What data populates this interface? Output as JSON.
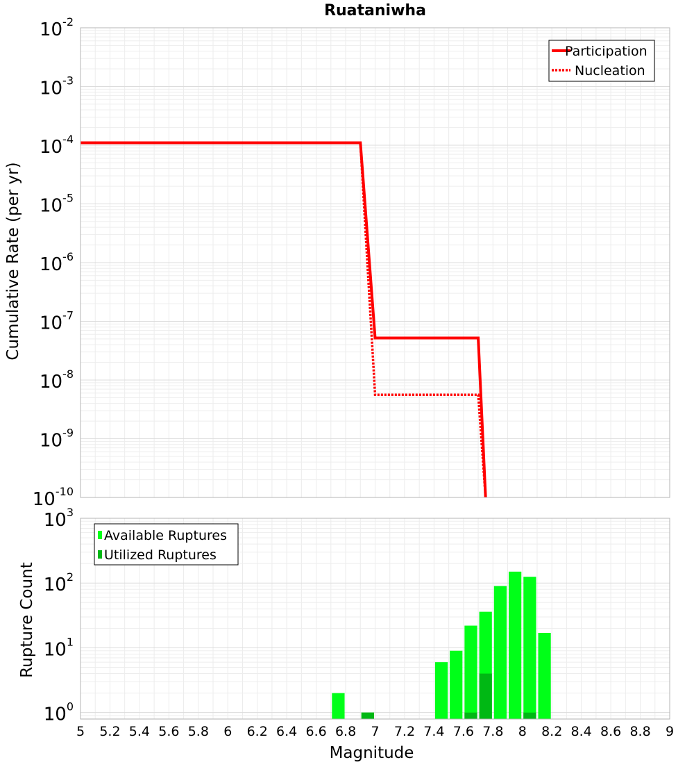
{
  "chart_data": [
    {
      "type": "line",
      "title": "Ruataniwha",
      "xlabel": "",
      "ylabel": "Cumulative Rate (per yr)",
      "xlim": [
        5,
        9
      ],
      "ylim_log10": [
        -10,
        -2
      ],
      "ytick_labels": [
        {
          "base": "10",
          "exp": "-2",
          "pos": -2
        },
        {
          "base": "10",
          "exp": "-3",
          "pos": -3
        },
        {
          "base": "10",
          "exp": "-4",
          "pos": -4
        },
        {
          "base": "10",
          "exp": "-5",
          "pos": -5
        },
        {
          "base": "10",
          "exp": "-6",
          "pos": -6
        },
        {
          "base": "10",
          "exp": "-7",
          "pos": -7
        },
        {
          "base": "10",
          "exp": "-8",
          "pos": -8
        },
        {
          "base": "10",
          "exp": "-9",
          "pos": -9
        },
        {
          "base": "10",
          "exp": "-10",
          "pos": -10
        }
      ],
      "grid": true,
      "legend": "top-right",
      "series": [
        {
          "name": "Participation",
          "color": "#ff0000",
          "style": "solid",
          "x": [
            5.0,
            6.9,
            7.0,
            7.7,
            7.75
          ],
          "y": [
            0.00011,
            0.00011,
            5.2e-08,
            5.2e-08,
            1e-10
          ]
        },
        {
          "name": "Nucleation",
          "color": "#ff0000",
          "style": "dotted",
          "x": [
            5.0,
            6.9,
            7.0,
            7.7,
            7.75
          ],
          "y": [
            0.00011,
            0.00011,
            5.6e-09,
            5.6e-09,
            1e-10
          ]
        }
      ]
    },
    {
      "type": "bar",
      "title": "",
      "xlabel": "Magnitude",
      "ylabel": "Rupture Count",
      "xlim": [
        5,
        9
      ],
      "ylim_log10": [
        -0.1,
        3
      ],
      "ytick_labels": [
        {
          "base": "10",
          "exp": "3",
          "pos": 3
        },
        {
          "base": "10",
          "exp": "2",
          "pos": 2
        },
        {
          "base": "10",
          "exp": "1",
          "pos": 1
        },
        {
          "base": "10",
          "exp": "0",
          "pos": 0
        }
      ],
      "x_ticks": [
        "5",
        "5.2",
        "5.4",
        "5.6",
        "5.8",
        "6",
        "6.2",
        "6.4",
        "6.6",
        "6.8",
        "7",
        "7.2",
        "7.4",
        "7.6",
        "7.8",
        "8",
        "8.2",
        "8.4",
        "8.6",
        "8.8",
        "9"
      ],
      "bin_width": 0.1,
      "grid": true,
      "legend": "top-left",
      "series": [
        {
          "name": "Available Ruptures",
          "color": "#00ff18",
          "x": [
            6.75,
            6.95,
            7.45,
            7.55,
            7.65,
            7.75,
            7.85,
            7.95,
            8.05,
            8.15
          ],
          "values": [
            2,
            1,
            6,
            9,
            22,
            36,
            90,
            150,
            125,
            17
          ]
        },
        {
          "name": "Utilized Ruptures",
          "color": "#00b814",
          "x": [
            6.95,
            7.65,
            7.75,
            8.05
          ],
          "values": [
            1,
            1,
            4,
            1
          ]
        }
      ]
    }
  ]
}
